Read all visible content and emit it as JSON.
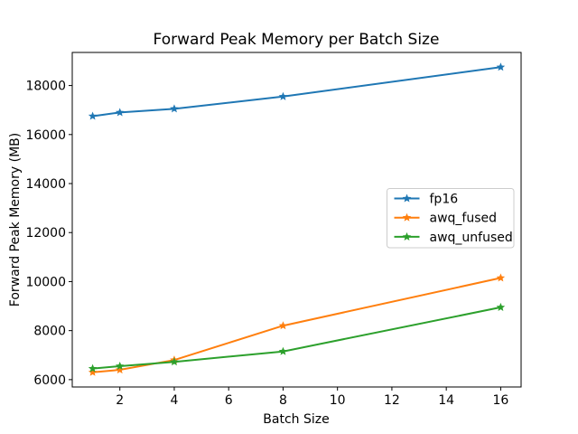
{
  "chart_data": {
    "type": "line",
    "title": "Forward Peak Memory per Batch Size",
    "xlabel": "Batch Size",
    "ylabel": "Forward Peak Memory (MB)",
    "x": [
      1,
      2,
      4,
      8,
      16
    ],
    "series": [
      {
        "name": "fp16",
        "color": "#1f77b4",
        "values": [
          16750,
          16900,
          17050,
          17550,
          18750
        ]
      },
      {
        "name": "awq_fused",
        "color": "#ff7f0e",
        "values": [
          6300,
          6400,
          6800,
          8200,
          10150
        ]
      },
      {
        "name": "awq_unfused",
        "color": "#2ca02c",
        "values": [
          6450,
          6550,
          6725,
          7150,
          8950
        ]
      }
    ],
    "xticks": [
      2,
      4,
      6,
      8,
      10,
      12,
      14,
      16
    ],
    "yticks": [
      6000,
      8000,
      10000,
      12000,
      14000,
      16000,
      18000
    ],
    "xlim": [
      0.25,
      16.75
    ],
    "ylim": [
      5700,
      19350
    ],
    "grid": false,
    "marker": "star",
    "legend_position": "center-right",
    "background_color": "#ffffff",
    "spine_color": "#000000",
    "legend_border_color": "#cccccc"
  }
}
